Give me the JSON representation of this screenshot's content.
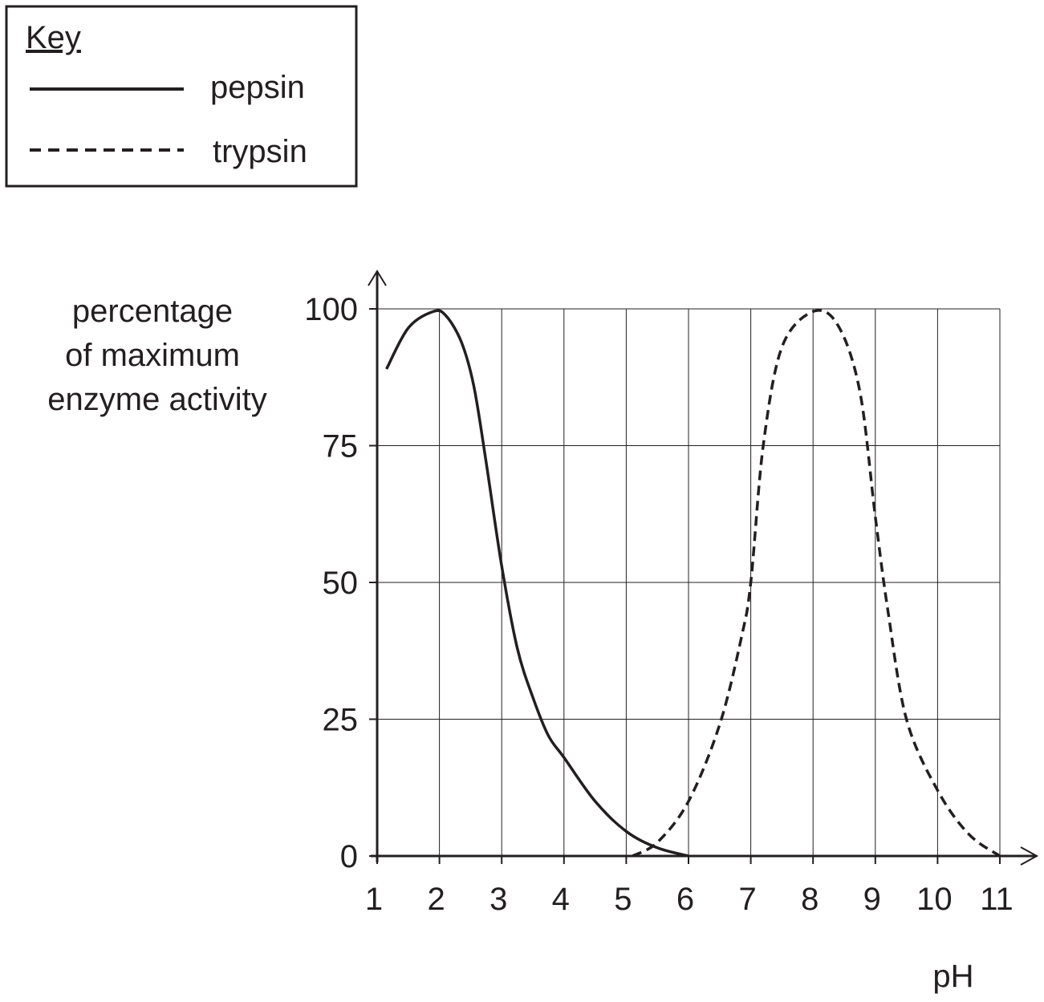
{
  "key": {
    "title": "Key"
  },
  "chart_data": {
    "type": "line",
    "xlabel": "pH",
    "ylabel_lines": [
      "percentage",
      "of maximum",
      "enzyme activity"
    ],
    "xlim": [
      1,
      11
    ],
    "ylim": [
      0,
      100
    ],
    "x_ticks": [
      1,
      2,
      3,
      4,
      5,
      6,
      7,
      8,
      9,
      10,
      11
    ],
    "y_ticks": [
      0,
      25,
      50,
      75,
      100
    ],
    "grid": true,
    "legend_position": "top-left",
    "series": [
      {
        "name": "pepsin",
        "line_style": "solid",
        "color": "#231f20",
        "points": [
          [
            1.15,
            89
          ],
          [
            1.5,
            96.5
          ],
          [
            1.9,
            99.5
          ],
          [
            2.1,
            98.8
          ],
          [
            2.35,
            94
          ],
          [
            2.55,
            86
          ],
          [
            2.75,
            72
          ],
          [
            3.0,
            53
          ],
          [
            3.25,
            38
          ],
          [
            3.5,
            29
          ],
          [
            3.75,
            22
          ],
          [
            4.0,
            18
          ],
          [
            4.5,
            10
          ],
          [
            5.0,
            4.5
          ],
          [
            5.5,
            1.5
          ],
          [
            6.0,
            0
          ]
        ]
      },
      {
        "name": "trypsin",
        "line_style": "dashed",
        "color": "#231f20",
        "points": [
          [
            5.1,
            0
          ],
          [
            5.5,
            2.5
          ],
          [
            6.0,
            10
          ],
          [
            6.5,
            24
          ],
          [
            6.85,
            40
          ],
          [
            7.0,
            50
          ],
          [
            7.2,
            75
          ],
          [
            7.5,
            93
          ],
          [
            8.0,
            99.5
          ],
          [
            8.4,
            97
          ],
          [
            8.75,
            85
          ],
          [
            9.0,
            62
          ],
          [
            9.2,
            45
          ],
          [
            9.5,
            25
          ],
          [
            10.0,
            12
          ],
          [
            10.5,
            4
          ],
          [
            11.0,
            0
          ]
        ]
      }
    ]
  }
}
